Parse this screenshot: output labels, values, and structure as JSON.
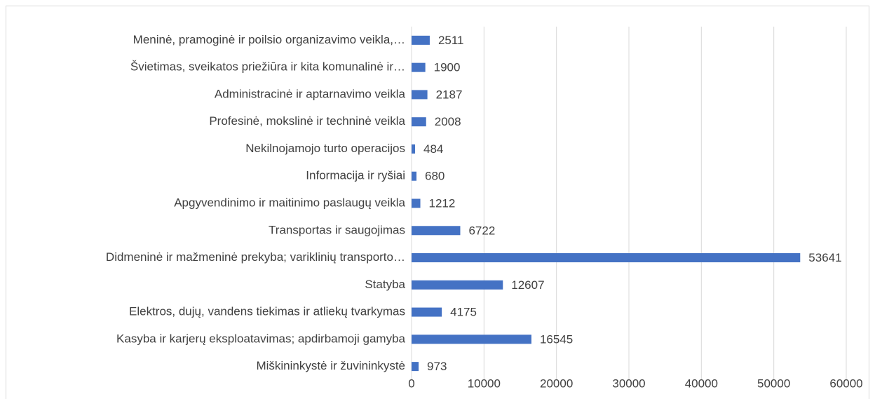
{
  "chart_data": {
    "type": "bar",
    "orientation": "horizontal",
    "categories": [
      "Meninė, pramoginė ir poilsio organizavimo veikla,…",
      "Švietimas, sveikatos priežiūra ir kita komunalinė ir…",
      "Administracinė ir aptarnavimo veikla",
      "Profesinė, mokslinė ir techninė veikla",
      "Nekilnojamojo turto operacijos",
      "Informacija ir ryšiai",
      "Apgyvendinimo ir maitinimo paslaugų veikla",
      "Transportas ir saugojimas",
      "Didmeninė ir mažmeninė prekyba; variklinių transporto…",
      "Statyba",
      "Elektros, dujų, vandens tiekimas ir atliekų tvarkymas",
      "Kasyba ir karjerų eksploatavimas; apdirbamoji gamyba",
      "Miškininkystė ir žuvininkystė"
    ],
    "values": [
      2511,
      1900,
      2187,
      2008,
      484,
      680,
      1212,
      6722,
      53641,
      12607,
      4175,
      16545,
      973
    ],
    "color": "#4472c4",
    "xlim": [
      0,
      60000
    ],
    "xticks": [
      0,
      10000,
      20000,
      30000,
      40000,
      50000,
      60000
    ],
    "grid": true
  }
}
